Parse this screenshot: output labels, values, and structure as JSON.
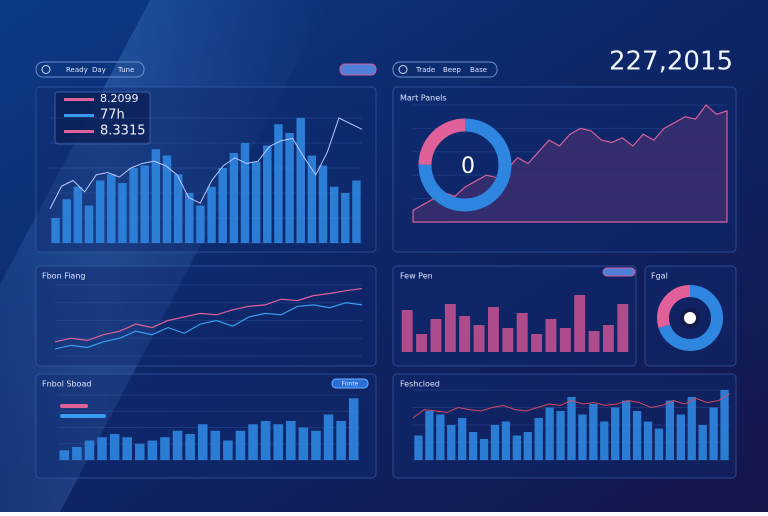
{
  "header": {
    "tabs_left": [
      "Ready",
      "Day",
      "Tune"
    ],
    "tabs_mid": [
      "Trade",
      "Beep",
      "Base"
    ],
    "total": "227,2015"
  },
  "panels": [
    {
      "legend": [
        "8.2099",
        "77h",
        "8.3315"
      ],
      "bars": [
        20,
        35,
        45,
        30,
        50,
        55,
        48,
        60,
        62,
        75,
        70,
        55,
        40,
        30,
        45,
        60,
        72,
        80,
        65,
        78,
        95,
        88,
        100,
        70,
        62,
        45,
        40,
        50
      ],
      "line": [
        30,
        50,
        55,
        45,
        60,
        62,
        58,
        66,
        70,
        72,
        68,
        60,
        40,
        35,
        55,
        68,
        75,
        70,
        72,
        85,
        90,
        92,
        75,
        60,
        80,
        110,
        105,
        100
      ]
    },
    {
      "title": "Mart Panels",
      "center": "0",
      "donut": [
        75,
        25
      ],
      "area": [
        10,
        15,
        20,
        25,
        22,
        30,
        35,
        40,
        38,
        45,
        55,
        50,
        60,
        70,
        65,
        75,
        80,
        78,
        70,
        68,
        72,
        65,
        75,
        70,
        80,
        85,
        90,
        88,
        100,
        92,
        95
      ]
    },
    {
      "title": "Fbon Fiang",
      "lines": [
        [
          20,
          25,
          22,
          30,
          35,
          45,
          40,
          50,
          55,
          60,
          58,
          65,
          70,
          72,
          80,
          78,
          85,
          88,
          92,
          95
        ],
        [
          10,
          15,
          12,
          20,
          25,
          35,
          30,
          40,
          32,
          45,
          50,
          42,
          55,
          60,
          58,
          70,
          72,
          68,
          75,
          72
        ]
      ]
    },
    {
      "title": "Few Pen",
      "bars": [
        70,
        30,
        55,
        80,
        60,
        45,
        75,
        40,
        65,
        30,
        55,
        40,
        95,
        35,
        45,
        80
      ]
    },
    {
      "title": "Fgal",
      "donut": [
        70,
        30
      ]
    },
    {
      "title": "Fnbol Sboad",
      "legend": [
        "Fonte"
      ],
      "bars": [
        15,
        20,
        30,
        35,
        40,
        35,
        25,
        30,
        35,
        45,
        40,
        55,
        45,
        30,
        45,
        55,
        60,
        55,
        60,
        50,
        45,
        70,
        60,
        95
      ]
    },
    {
      "title": "Feshcloed",
      "bars": [
        35,
        70,
        65,
        50,
        60,
        40,
        30,
        50,
        55,
        35,
        40,
        60,
        75,
        70,
        90,
        65,
        80,
        55,
        75,
        85,
        70,
        55,
        45,
        85,
        65,
        90,
        50,
        75,
        100
      ],
      "line": [
        60,
        72,
        70,
        68,
        75,
        72,
        70,
        75,
        78,
        72,
        70,
        75,
        80,
        78,
        85,
        80,
        82,
        78,
        80,
        85,
        82,
        75,
        78,
        85,
        80,
        88,
        82,
        85,
        95
      ]
    }
  ]
}
